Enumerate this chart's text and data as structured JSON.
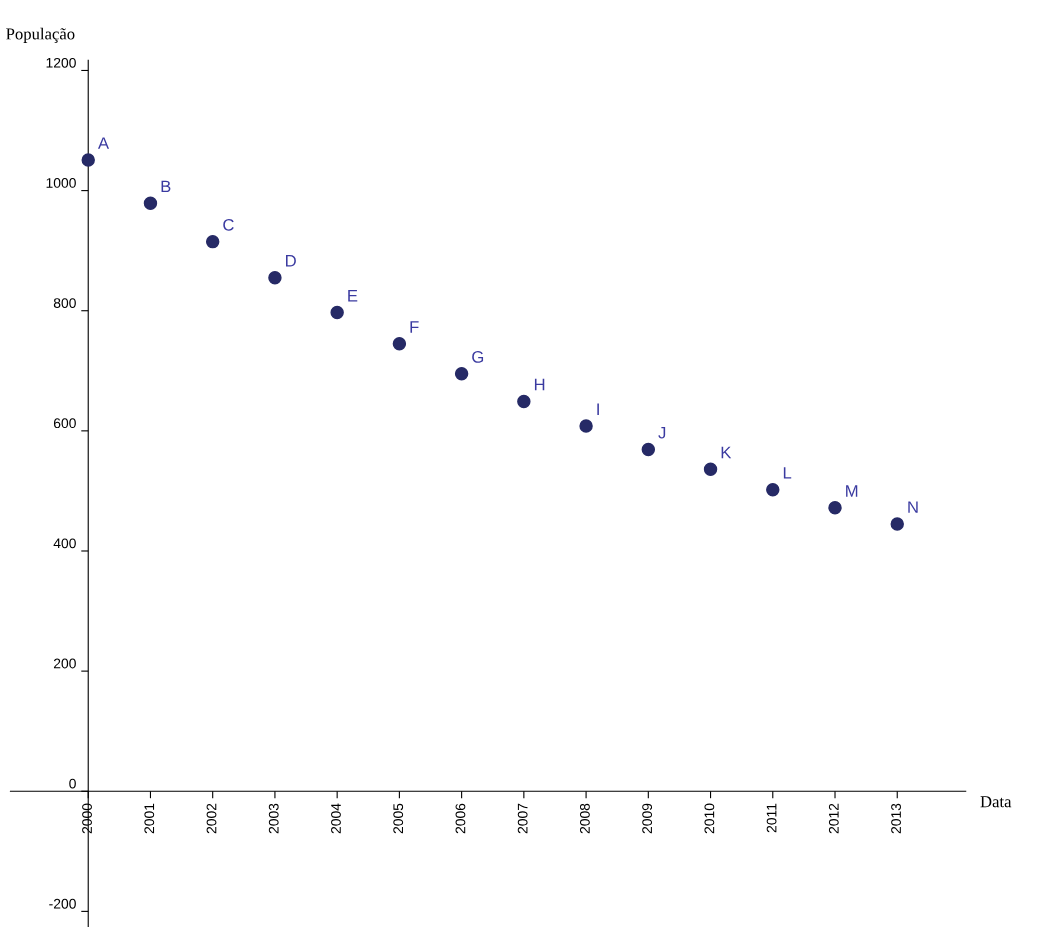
{
  "chart_data": {
    "type": "scatter",
    "xlabel": "Data",
    "ylabel": "População",
    "x": [
      2000,
      2001,
      2002,
      2003,
      2004,
      2005,
      2006,
      2007,
      2008,
      2009,
      2010,
      2011,
      2012,
      2013
    ],
    "series": [
      {
        "color": "#262a66",
        "values": [
          1051,
          979,
          915,
          855,
          797,
          745,
          695,
          649,
          608,
          569,
          536,
          502,
          472,
          445
        ]
      }
    ],
    "annotations": [
      {
        "text": "A",
        "x": 2000,
        "y": 1051
      },
      {
        "text": "B",
        "x": 2001,
        "y": 979
      },
      {
        "text": "C",
        "x": 2002,
        "y": 915
      },
      {
        "text": "D",
        "x": 2003,
        "y": 855
      },
      {
        "text": "E",
        "x": 2004,
        "y": 797
      },
      {
        "text": "F",
        "x": 2005,
        "y": 745
      },
      {
        "text": "G",
        "x": 2006,
        "y": 695
      },
      {
        "text": "H",
        "x": 2007,
        "y": 649
      },
      {
        "text": "I",
        "x": 2008,
        "y": 608
      },
      {
        "text": "J",
        "x": 2009,
        "y": 569
      },
      {
        "text": "K",
        "x": 2010,
        "y": 536
      },
      {
        "text": "L",
        "x": 2011,
        "y": 502
      },
      {
        "text": "M",
        "x": 2012,
        "y": 472
      },
      {
        "text": "N",
        "x": 2013,
        "y": 445
      }
    ],
    "xlim": [
      1998.75,
      2014.1
    ],
    "ylim": [
      -226,
      1217
    ],
    "xticks": [
      2000,
      2001,
      2002,
      2003,
      2004,
      2005,
      2006,
      2007,
      2008,
      2009,
      2010,
      2011,
      2012,
      2013
    ],
    "yticks": [
      -200,
      0,
      200,
      400,
      600,
      800,
      1000,
      1200
    ],
    "grid": false,
    "marker": "circle",
    "legend": false
  }
}
